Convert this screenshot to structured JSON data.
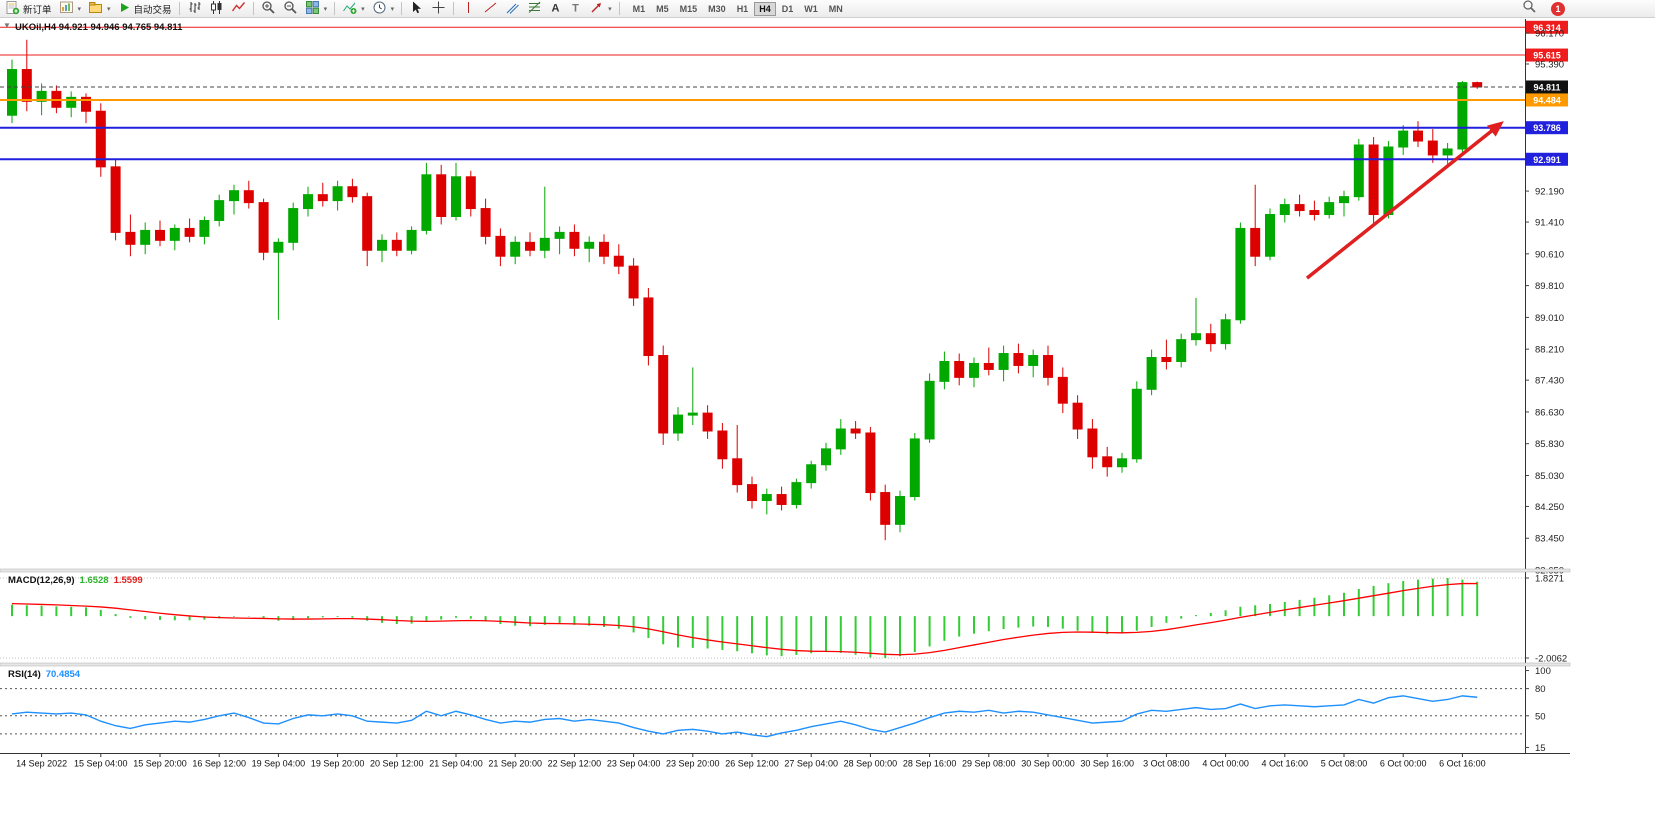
{
  "toolbar": {
    "new_order": "新订单",
    "auto_trading": "自动交易",
    "timeframes": [
      "M1",
      "M5",
      "M15",
      "M30",
      "H1",
      "H4",
      "D1",
      "W1",
      "MN"
    ],
    "active_timeframe": "H4",
    "alert_count": "1",
    "icons": [
      "new-order-icon",
      "new-chart-icon",
      "profiles-icon",
      "autotrading-icon",
      "bar-chart-icon",
      "candlestick-icon",
      "line-chart-icon",
      "zoom-in-icon",
      "zoom-out-icon",
      "tile-windows-icon",
      "indicators-icon",
      "periods-clock-icon",
      "cursor-icon",
      "crosshair-icon",
      "vertical-line-icon",
      "trendline-icon",
      "channel-icon",
      "fibonacci-icon",
      "text-icon",
      "label-icon",
      "arrows-icon",
      "search-icon"
    ]
  },
  "chart": {
    "title": "UKOil,H4 94.921 94.946 94.765 94.811",
    "symbol": "UKOil",
    "period": "H4",
    "open": "94.921",
    "high": "94.946",
    "low": "94.765",
    "close": "94.811"
  },
  "macd_panel": {
    "label": "MACD(12,26,9)",
    "value_main": "1.6528",
    "value_signal": "1.5599",
    "scale_max": "1.8271",
    "scale_min": "-2.0062"
  },
  "rsi_panel": {
    "label": "RSI(14)",
    "value": "70.4854",
    "scale_labels": [
      "100",
      "80",
      "50",
      "15"
    ]
  },
  "chart_data": [
    {
      "type": "candlestick",
      "symbol": "UKOil",
      "timeframe": "H4",
      "ylim": [
        82.45,
        96.55
      ],
      "colors": {
        "up": "#00A800",
        "down": "#DD0000"
      },
      "y_ticks": [
        "96.170",
        "95.390",
        "92.190",
        "91.410",
        "90.610",
        "89.810",
        "89.010",
        "88.210",
        "87.430",
        "86.630",
        "85.830",
        "85.030",
        "84.250",
        "83.450",
        "82.650"
      ],
      "x_labels": [
        "14 Sep 2022",
        "15 Sep 04:00",
        "15 Sep 20:00",
        "16 Sep 12:00",
        "19 Sep 04:00",
        "19 Sep 20:00",
        "20 Sep 12:00",
        "21 Sep 04:00",
        "21 Sep 20:00",
        "22 Sep 12:00",
        "23 Sep 04:00",
        "23 Sep 20:00",
        "26 Sep 12:00",
        "27 Sep 04:00",
        "28 Sep 00:00",
        "28 Sep 16:00",
        "29 Sep 08:00",
        "30 Sep 00:00",
        "30 Sep 16:00",
        "3 Oct 08:00",
        "4 Oct 00:00",
        "4 Oct 16:00",
        "5 Oct 08:00",
        "6 Oct 00:00",
        "6 Oct 16:00"
      ],
      "x_label_offset": 2,
      "x_label_every": 4,
      "levels": [
        {
          "price": 96.314,
          "label": "96.314",
          "color": "#ee1c1c",
          "box": "#ee1c1c",
          "width": 1
        },
        {
          "price": 95.615,
          "label": "95.615",
          "color": "#ee1c1c",
          "box": "#ee1c1c",
          "width": 1
        },
        {
          "price": 94.811,
          "label": "94.811",
          "color": "#444444",
          "box": "#111111",
          "width": 1,
          "dashed": true
        },
        {
          "price": 94.484,
          "label": "94.484",
          "color": "#ff9900",
          "box": "#ff9900",
          "width": 2
        },
        {
          "price": 93.786,
          "label": "93.786",
          "color": "#2020dd",
          "box": "#2020dd",
          "width": 2
        },
        {
          "price": 92.991,
          "label": "92.991",
          "color": "#2020dd",
          "box": "#2020dd",
          "width": 2
        }
      ],
      "trend_arrow": {
        "from_idx": 87.5,
        "from_price": 90.0,
        "to_idx": 100.8,
        "to_price": 93.95,
        "color": "#e02020"
      },
      "ohlc": [
        [
          94.1,
          95.5,
          93.9,
          95.25
        ],
        [
          95.25,
          96.0,
          94.2,
          94.45
        ],
        [
          94.45,
          94.9,
          94.1,
          94.7
        ],
        [
          94.7,
          94.85,
          94.15,
          94.3
        ],
        [
          94.3,
          94.7,
          94.05,
          94.55
        ],
        [
          94.55,
          94.65,
          93.9,
          94.2
        ],
        [
          94.2,
          94.4,
          92.55,
          92.8
        ],
        [
          92.8,
          93.0,
          90.95,
          91.15
        ],
        [
          91.15,
          91.6,
          90.55,
          90.85
        ],
        [
          90.85,
          91.4,
          90.6,
          91.2
        ],
        [
          91.2,
          91.45,
          90.8,
          90.95
        ],
        [
          90.95,
          91.35,
          90.7,
          91.25
        ],
        [
          91.25,
          91.5,
          90.9,
          91.05
        ],
        [
          91.05,
          91.55,
          90.85,
          91.45
        ],
        [
          91.45,
          92.1,
          91.3,
          91.95
        ],
        [
          91.95,
          92.35,
          91.6,
          92.2
        ],
        [
          92.2,
          92.45,
          91.75,
          91.9
        ],
        [
          91.9,
          92.0,
          90.45,
          90.65
        ],
        [
          90.65,
          91.0,
          88.95,
          90.9
        ],
        [
          90.9,
          91.9,
          90.7,
          91.75
        ],
        [
          91.75,
          92.3,
          91.55,
          92.1
        ],
        [
          92.1,
          92.4,
          91.8,
          91.95
        ],
        [
          91.95,
          92.45,
          91.7,
          92.3
        ],
        [
          92.3,
          92.5,
          91.9,
          92.05
        ],
        [
          92.05,
          92.15,
          90.3,
          90.7
        ],
        [
          90.7,
          91.1,
          90.4,
          90.95
        ],
        [
          90.95,
          91.15,
          90.55,
          90.7
        ],
        [
          90.7,
          91.3,
          90.6,
          91.2
        ],
        [
          91.2,
          92.9,
          91.1,
          92.6
        ],
        [
          92.6,
          92.85,
          91.35,
          91.55
        ],
        [
          91.55,
          92.9,
          91.45,
          92.55
        ],
        [
          92.55,
          92.7,
          91.55,
          91.75
        ],
        [
          91.75,
          92.0,
          90.85,
          91.05
        ],
        [
          91.05,
          91.25,
          90.3,
          90.55
        ],
        [
          90.55,
          91.05,
          90.35,
          90.9
        ],
        [
          90.9,
          91.15,
          90.55,
          90.7
        ],
        [
          90.7,
          92.3,
          90.5,
          91.0
        ],
        [
          91.0,
          91.3,
          90.6,
          91.15
        ],
        [
          91.15,
          91.35,
          90.55,
          90.75
        ],
        [
          90.75,
          91.05,
          90.4,
          90.9
        ],
        [
          90.9,
          91.1,
          90.35,
          90.55
        ],
        [
          90.55,
          90.85,
          90.1,
          90.3
        ],
        [
          90.3,
          90.5,
          89.3,
          89.5
        ],
        [
          89.5,
          89.75,
          87.8,
          88.05
        ],
        [
          88.05,
          88.3,
          85.8,
          86.1
        ],
        [
          86.1,
          86.75,
          85.9,
          86.55
        ],
        [
          86.55,
          87.75,
          86.3,
          86.6
        ],
        [
          86.6,
          86.8,
          85.95,
          86.15
        ],
        [
          86.15,
          86.35,
          85.2,
          85.45
        ],
        [
          85.45,
          86.3,
          84.6,
          84.8
        ],
        [
          84.8,
          85.0,
          84.2,
          84.4
        ],
        [
          84.4,
          84.7,
          84.05,
          84.55
        ],
        [
          84.55,
          84.75,
          84.15,
          84.3
        ],
        [
          84.3,
          84.95,
          84.2,
          84.85
        ],
        [
          84.85,
          85.4,
          84.7,
          85.3
        ],
        [
          85.3,
          85.85,
          85.15,
          85.7
        ],
        [
          85.7,
          86.45,
          85.55,
          86.2
        ],
        [
          86.2,
          86.4,
          85.95,
          86.1
        ],
        [
          86.1,
          86.25,
          84.4,
          84.6
        ],
        [
          84.6,
          84.8,
          83.4,
          83.8
        ],
        [
          83.8,
          84.65,
          83.6,
          84.5
        ],
        [
          84.5,
          86.1,
          84.4,
          85.95
        ],
        [
          85.95,
          87.6,
          85.85,
          87.4
        ],
        [
          87.4,
          88.15,
          87.2,
          87.9
        ],
        [
          87.9,
          88.1,
          87.3,
          87.5
        ],
        [
          87.5,
          88.0,
          87.25,
          87.85
        ],
        [
          87.85,
          88.25,
          87.55,
          87.7
        ],
        [
          87.7,
          88.3,
          87.4,
          88.1
        ],
        [
          88.1,
          88.35,
          87.6,
          87.8
        ],
        [
          87.8,
          88.2,
          87.5,
          88.05
        ],
        [
          88.05,
          88.3,
          87.3,
          87.5
        ],
        [
          87.5,
          87.75,
          86.6,
          86.85
        ],
        [
          86.85,
          87.05,
          85.95,
          86.2
        ],
        [
          86.2,
          86.45,
          85.2,
          85.5
        ],
        [
          85.5,
          85.75,
          85.0,
          85.25
        ],
        [
          85.25,
          85.6,
          85.1,
          85.45
        ],
        [
          85.45,
          87.4,
          85.35,
          87.2
        ],
        [
          87.2,
          88.2,
          87.05,
          88.0
        ],
        [
          88.0,
          88.45,
          87.7,
          87.9
        ],
        [
          87.9,
          88.6,
          87.75,
          88.45
        ],
        [
          88.45,
          89.5,
          88.3,
          88.6
        ],
        [
          88.6,
          88.85,
          88.15,
          88.35
        ],
        [
          88.35,
          89.1,
          88.2,
          88.95
        ],
        [
          88.95,
          91.4,
          88.85,
          91.25
        ],
        [
          91.25,
          92.35,
          90.3,
          90.55
        ],
        [
          90.55,
          91.75,
          90.45,
          91.6
        ],
        [
          91.6,
          92.0,
          91.4,
          91.85
        ],
        [
          91.85,
          92.1,
          91.55,
          91.7
        ],
        [
          91.7,
          91.95,
          91.45,
          91.6
        ],
        [
          91.6,
          92.05,
          91.5,
          91.9
        ],
        [
          91.9,
          92.2,
          91.55,
          92.05
        ],
        [
          92.05,
          93.5,
          91.95,
          93.35
        ],
        [
          93.35,
          93.55,
          91.35,
          91.6
        ],
        [
          91.6,
          93.45,
          91.5,
          93.3
        ],
        [
          93.3,
          93.85,
          93.1,
          93.7
        ],
        [
          93.7,
          93.95,
          93.3,
          93.45
        ],
        [
          93.45,
          93.75,
          92.9,
          93.1
        ],
        [
          93.1,
          93.4,
          92.85,
          93.25
        ],
        [
          93.25,
          94.96,
          93.15,
          94.92
        ],
        [
          94.921,
          94.946,
          94.765,
          94.811
        ]
      ]
    },
    {
      "type": "bar",
      "name": "MACD(12,26,9)",
      "scale_max": 1.8271,
      "scale_min": -2.0062,
      "colors": {
        "histogram": "#32CD32",
        "signal": "#ff0000"
      },
      "values": [
        0.55,
        0.52,
        0.5,
        0.47,
        0.45,
        0.42,
        0.3,
        0.1,
        -0.08,
        -0.15,
        -0.18,
        -0.2,
        -0.2,
        -0.17,
        -0.1,
        -0.03,
        -0.02,
        -0.12,
        -0.22,
        -0.18,
        -0.1,
        -0.06,
        -0.04,
        -0.08,
        -0.22,
        -0.32,
        -0.38,
        -0.36,
        -0.22,
        -0.16,
        -0.08,
        -0.12,
        -0.25,
        -0.38,
        -0.46,
        -0.48,
        -0.42,
        -0.38,
        -0.42,
        -0.46,
        -0.52,
        -0.6,
        -0.78,
        -1.05,
        -1.35,
        -1.5,
        -1.52,
        -1.55,
        -1.62,
        -1.68,
        -1.78,
        -1.88,
        -1.92,
        -1.86,
        -1.78,
        -1.72,
        -1.76,
        -1.85,
        -1.98,
        -2.0062,
        -1.92,
        -1.72,
        -1.45,
        -1.18,
        -0.98,
        -0.84,
        -0.72,
        -0.62,
        -0.55,
        -0.5,
        -0.52,
        -0.6,
        -0.7,
        -0.8,
        -0.86,
        -0.82,
        -0.7,
        -0.52,
        -0.32,
        -0.12,
        0.05,
        0.15,
        0.28,
        0.45,
        0.52,
        0.58,
        0.68,
        0.78,
        0.88,
        1.0,
        1.12,
        1.3,
        1.45,
        1.58,
        1.68,
        1.75,
        1.8,
        1.8271,
        1.75,
        1.6528
      ],
      "signal": [
        0.6,
        0.58,
        0.56,
        0.54,
        0.51,
        0.48,
        0.44,
        0.38,
        0.3,
        0.22,
        0.14,
        0.07,
        0.01,
        -0.04,
        -0.07,
        -0.09,
        -0.1,
        -0.11,
        -0.13,
        -0.14,
        -0.14,
        -0.13,
        -0.12,
        -0.12,
        -0.14,
        -0.17,
        -0.21,
        -0.24,
        -0.25,
        -0.24,
        -0.22,
        -0.21,
        -0.22,
        -0.25,
        -0.29,
        -0.33,
        -0.35,
        -0.36,
        -0.37,
        -0.39,
        -0.41,
        -0.45,
        -0.51,
        -0.61,
        -0.75,
        -0.9,
        -1.03,
        -1.14,
        -1.24,
        -1.33,
        -1.42,
        -1.51,
        -1.59,
        -1.65,
        -1.68,
        -1.69,
        -1.7,
        -1.73,
        -1.78,
        -1.83,
        -1.85,
        -1.82,
        -1.75,
        -1.64,
        -1.51,
        -1.38,
        -1.25,
        -1.12,
        -1.01,
        -0.91,
        -0.83,
        -0.78,
        -0.76,
        -0.77,
        -0.79,
        -0.8,
        -0.78,
        -0.73,
        -0.65,
        -0.54,
        -0.42,
        -0.31,
        -0.19,
        -0.06,
        0.06,
        0.18,
        0.3,
        0.41,
        0.52,
        0.63,
        0.74,
        0.86,
        0.98,
        1.1,
        1.22,
        1.33,
        1.43,
        1.51,
        1.56,
        1.5599
      ]
    },
    {
      "type": "line",
      "name": "RSI(14)",
      "color": "#1E90FF",
      "current": 70.4854,
      "levels": [
        80,
        50,
        30
      ],
      "values": [
        52,
        54,
        53,
        52,
        53,
        51,
        44,
        39,
        36,
        40,
        42,
        44,
        43,
        46,
        50,
        53,
        48,
        42,
        41,
        47,
        51,
        50,
        52,
        50,
        44,
        43,
        42,
        45,
        55,
        50,
        55,
        51,
        46,
        42,
        44,
        43,
        46,
        47,
        44,
        46,
        44,
        42,
        37,
        33,
        30,
        34,
        35,
        33,
        30,
        32,
        29,
        27,
        31,
        34,
        38,
        41,
        44,
        40,
        35,
        32,
        37,
        42,
        48,
        53,
        55,
        54,
        56,
        53,
        55,
        54,
        51,
        48,
        45,
        42,
        43,
        44,
        52,
        56,
        55,
        57,
        59,
        57,
        58,
        63,
        58,
        61,
        62,
        61,
        60,
        61,
        62,
        68,
        64,
        70,
        72,
        69,
        66,
        68,
        72,
        70.4854
      ]
    }
  ]
}
